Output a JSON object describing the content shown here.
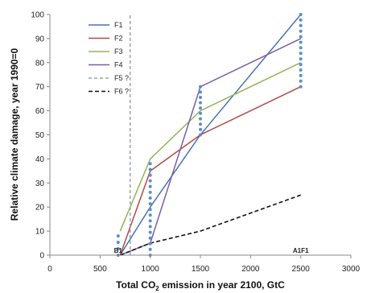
{
  "chart_data": {
    "type": "line",
    "xlabel_main": "Total CO",
    "xlabel_sub": "2",
    "xlabel_rest": " emission in year 2100, GtC",
    "ylabel": "Relative climate damage, year 1990=0",
    "xlim": [
      0,
      3000
    ],
    "ylim": [
      0,
      100
    ],
    "xticks": [
      "0",
      "500",
      "1000",
      "1500",
      "2000",
      "2500",
      "3000"
    ],
    "yticks": [
      "0",
      "10",
      "20",
      "30",
      "40",
      "50",
      "60",
      "70",
      "80",
      "90",
      "100"
    ],
    "annotations": [
      {
        "text": "B1",
        "x": 680,
        "y": 0
      },
      {
        "text": "A1F1",
        "x": 2500,
        "y": 0
      }
    ],
    "series": [
      {
        "name": "F1",
        "color": "#4a73b4",
        "dash": "solid",
        "x": [
          700,
          1000,
          1500,
          2500
        ],
        "y": [
          0,
          20,
          50,
          100
        ]
      },
      {
        "name": "F2",
        "color": "#b34a47",
        "dash": "solid",
        "x": [
          700,
          1000,
          1500,
          2500
        ],
        "y": [
          0,
          35,
          50,
          70
        ]
      },
      {
        "name": "F3",
        "color": "#91b556",
        "dash": "solid",
        "x": [
          700,
          1000,
          1500,
          2500
        ],
        "y": [
          10,
          40,
          60,
          80
        ]
      },
      {
        "name": "F4",
        "color": "#7a5ea8",
        "dash": "solid",
        "x": [
          700,
          1000,
          1500,
          2500
        ],
        "y": [
          0,
          5,
          70,
          90
        ]
      },
      {
        "name": "F5 ?",
        "color": "#9aa2ab",
        "dash": "dashed",
        "x": [
          800,
          800
        ],
        "y": [
          0,
          100
        ]
      },
      {
        "name": "F6 ?",
        "color": "#111111",
        "dash": "dashed",
        "x": [
          700,
          1000,
          1500,
          2500
        ],
        "y": [
          0,
          5,
          10,
          25
        ]
      }
    ],
    "dotted_verticals": [
      {
        "x": 680,
        "y": [
          0,
          8
        ]
      },
      {
        "x": 1000,
        "y": [
          0,
          38
        ]
      },
      {
        "x": 1500,
        "y": [
          50,
          70
        ]
      },
      {
        "x": 2500,
        "y": [
          70,
          100
        ]
      }
    ],
    "dot_color": "#5b8ec9"
  }
}
